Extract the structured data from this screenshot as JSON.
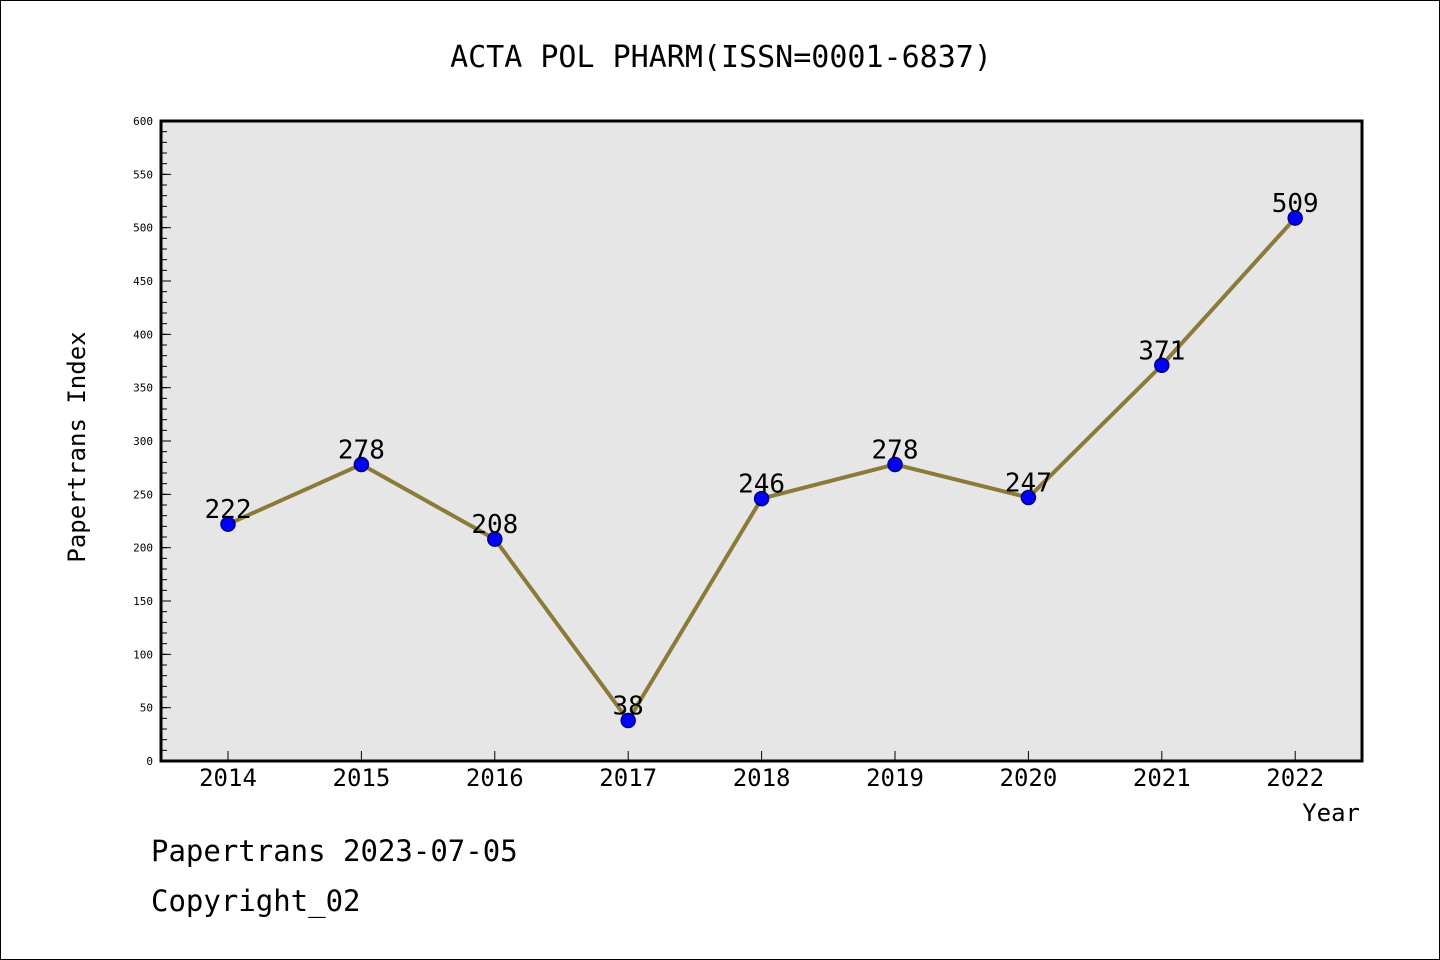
{
  "chart_data": {
    "type": "line",
    "title": "ACTA POL PHARM(ISSN=0001-6837)",
    "xlabel": "Year",
    "ylabel": "Papertrans Index",
    "x": [
      "2014",
      "2015",
      "2016",
      "2017",
      "2018",
      "2019",
      "2020",
      "2021",
      "2022"
    ],
    "series": [
      {
        "values": [
          222,
          278,
          208,
          38,
          246,
          278,
          247,
          371,
          509
        ]
      }
    ],
    "data_labels": [
      "222",
      "278",
      "208",
      "38",
      "246",
      "278",
      "247",
      "371",
      "509"
    ],
    "ylim": [
      0,
      600
    ],
    "yticks": [
      0,
      50,
      100,
      150,
      200,
      250,
      300,
      350,
      400,
      450,
      500,
      550,
      600
    ],
    "y_minor_step": 10,
    "grid": false,
    "legend": "none",
    "colors": {
      "plot_background": "#e6e6e6",
      "line": "#8b7a3a",
      "marker": "#0000ff",
      "marker_edge": "#000080"
    }
  },
  "footer": {
    "line1": "Papertrans 2023-07-05",
    "line2": "Copyright_02"
  }
}
